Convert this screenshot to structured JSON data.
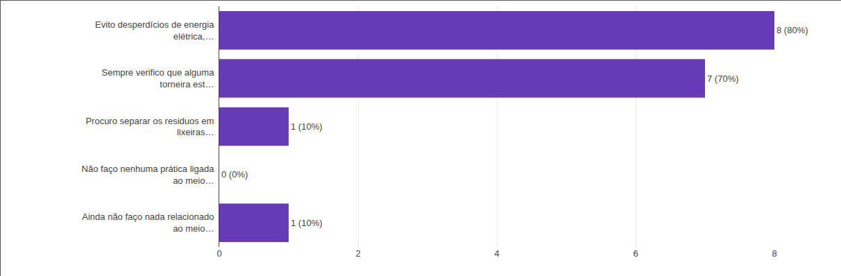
{
  "chart_data": {
    "type": "bar",
    "orientation": "horizontal",
    "categories": [
      "Evito desperdícios de energia\nelétrica,…",
      "Sempre verifico que alguma\ntorneira est…",
      "Procuro separar os residuos em\nlixeiras…",
      "Não faço nenhuma prática ligada\nao meio…",
      "Ainda não faço nada relacionado\nao meio…"
    ],
    "values": [
      8,
      7,
      1,
      0,
      1
    ],
    "value_labels": [
      "8 (80%)",
      "7 (70%)",
      "1 (10%)",
      "0 (0%)",
      "1 (10%)"
    ],
    "data_labels": true,
    "color": "#673ab7",
    "xlim": [
      0,
      8
    ],
    "xticks": [
      0,
      2,
      4,
      6,
      8
    ],
    "grid": true
  }
}
